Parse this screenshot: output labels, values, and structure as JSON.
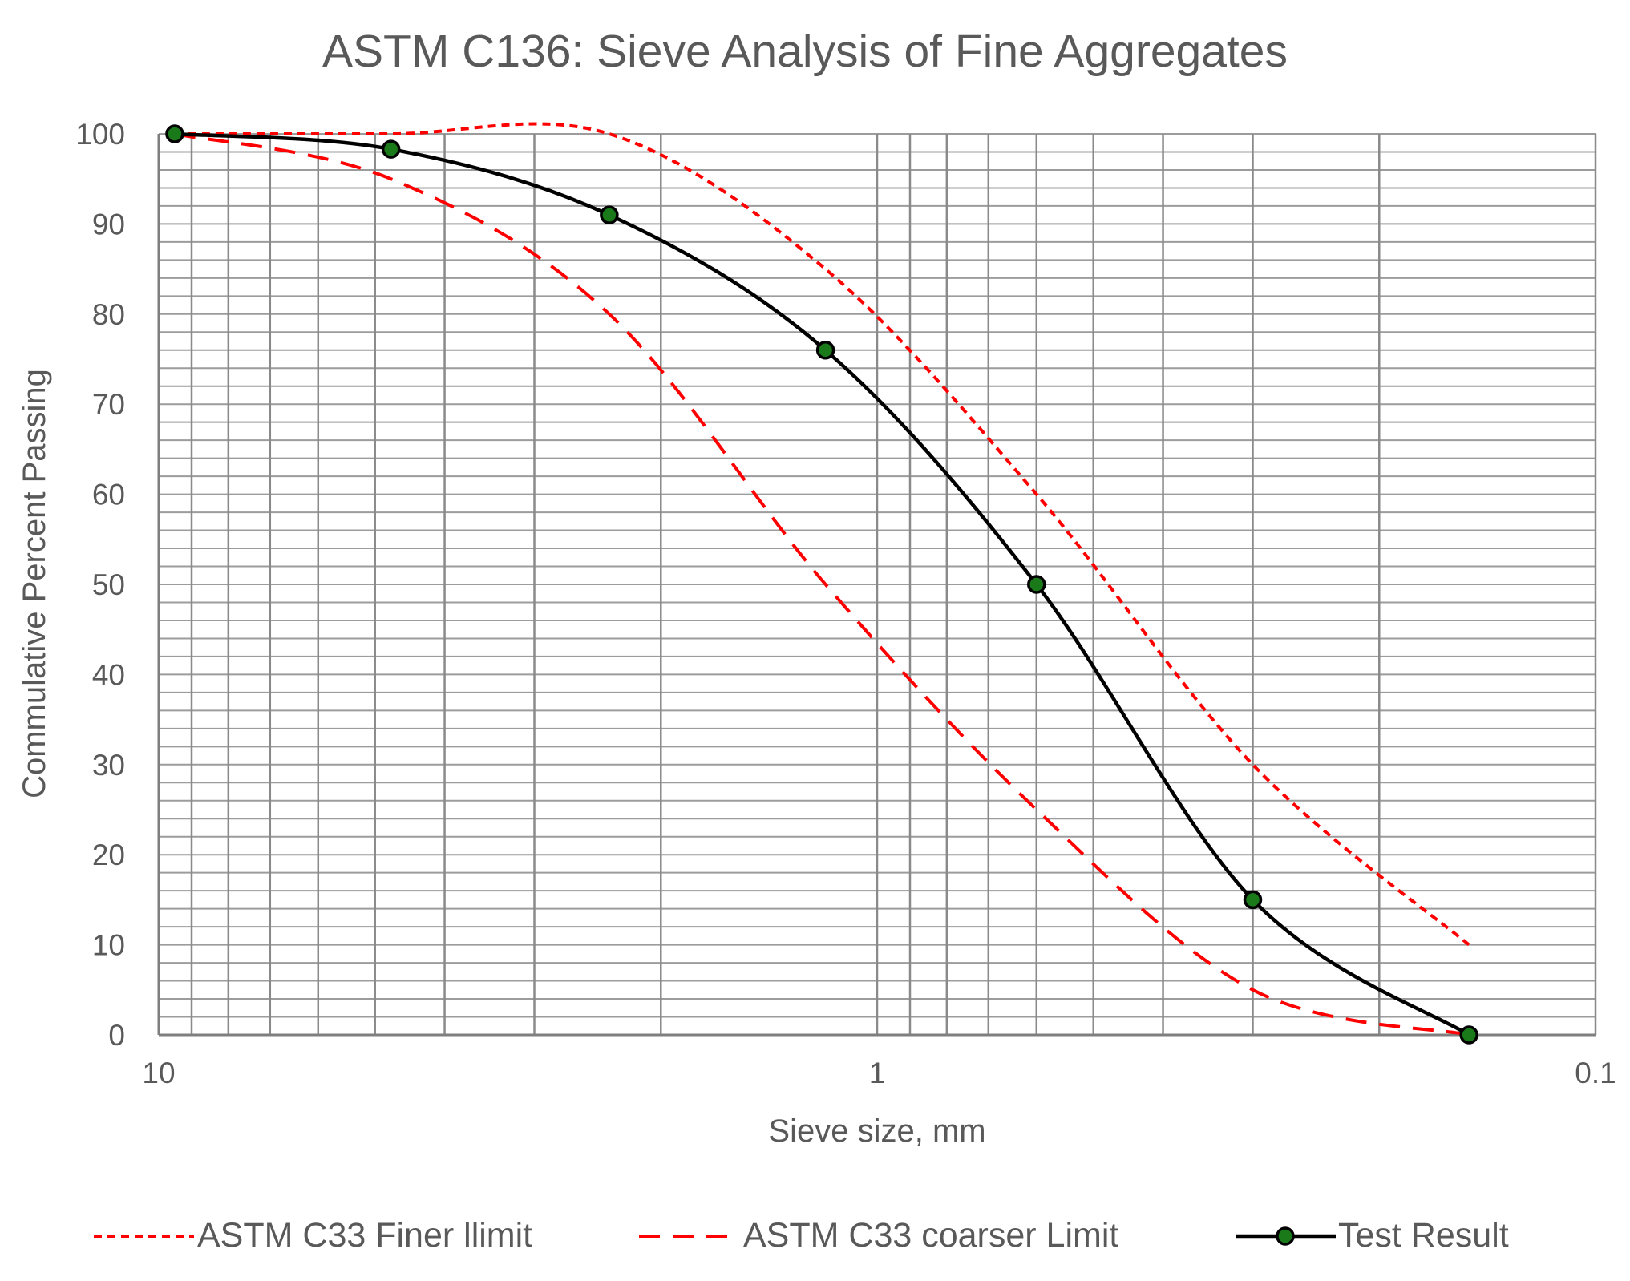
{
  "chart_data": {
    "type": "line",
    "title": "ASTM C136: Sieve Analysis of Fine Aggregates",
    "xlabel": "Sieve size, mm",
    "ylabel": "Commulative Percent Passing",
    "x_scale": "log",
    "x_reversed": true,
    "xlim": [
      10,
      0.1
    ],
    "ylim": [
      0,
      100
    ],
    "x_ticks": [
      10,
      1,
      0.1
    ],
    "x_tick_labels": [
      "10",
      "1",
      "0.1"
    ],
    "y_ticks": [
      0,
      10,
      20,
      30,
      40,
      50,
      60,
      70,
      80,
      90,
      100
    ],
    "y_tick_labels": [
      "0",
      "10",
      "20",
      "30",
      "40",
      "50",
      "60",
      "70",
      "80",
      "90",
      "100"
    ],
    "grid": true,
    "legend_position": "bottom",
    "series": [
      {
        "name": "ASTM C33 Finer llimit",
        "color": "#ff0000",
        "style": "dotted",
        "markers": false,
        "x": [
          9.5,
          4.75,
          2.36,
          1.18,
          0.6,
          0.3,
          0.15
        ],
        "y": [
          100,
          100,
          100,
          85,
          60,
          30,
          10
        ]
      },
      {
        "name": "ASTM C33 coarser Limit",
        "color": "#ff0000",
        "style": "dashed",
        "markers": false,
        "x": [
          9.5,
          4.75,
          2.36,
          1.18,
          0.6,
          0.3,
          0.15
        ],
        "y": [
          100,
          95,
          80,
          50,
          25,
          5,
          0
        ]
      },
      {
        "name": "Test Result",
        "color": "#000000",
        "style": "solid",
        "markers": true,
        "marker_color": "#1a7a1a",
        "x": [
          9.5,
          4.75,
          2.36,
          1.18,
          0.6,
          0.3,
          0.15
        ],
        "y": [
          100,
          98.3,
          91,
          76,
          50,
          15,
          0
        ]
      }
    ]
  }
}
